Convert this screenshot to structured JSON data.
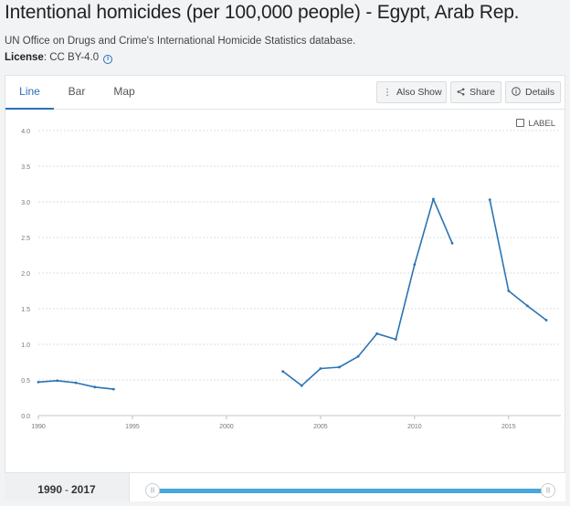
{
  "header": {
    "title": "Intentional homicides (per 100,000 people) - Egypt, Arab Rep.",
    "source": "UN Office on Drugs and Crime's International Homicide Statistics database.",
    "license_label": "License",
    "license_value": ": CC BY-4.0"
  },
  "tabs": [
    {
      "label": "Line",
      "active": true
    },
    {
      "label": "Bar",
      "active": false
    },
    {
      "label": "Map",
      "active": false
    }
  ],
  "actions": {
    "also_show": "Also Show",
    "share": "Share",
    "details": "Details"
  },
  "label_toggle": "LABEL",
  "range": {
    "start": "1990",
    "separator": "-",
    "end": "2017"
  },
  "colors": {
    "line": "#2a74b4",
    "accent": "#2a6ebb",
    "slider": "#4aa6dd"
  },
  "chart_data": {
    "type": "line",
    "title": "",
    "xlabel": "",
    "ylabel": "",
    "xlim": [
      1990,
      2017
    ],
    "ylim": [
      0,
      4
    ],
    "xticks": [
      1990,
      1995,
      2000,
      2005,
      2010,
      2015
    ],
    "yticks": [
      "0.0",
      "0.5",
      "1.0",
      "1.5",
      "2.0",
      "2.5",
      "3.0",
      "3.5",
      "4.0"
    ],
    "grid": "horizontal-dashed",
    "series": [
      {
        "points": [
          [
            1990,
            0.47
          ],
          [
            1991,
            0.49
          ],
          [
            1992,
            0.46
          ],
          [
            1993,
            0.4
          ],
          [
            1994,
            0.37
          ],
          [
            1995,
            null
          ],
          [
            1996,
            null
          ],
          [
            1997,
            null
          ],
          [
            1998,
            null
          ],
          [
            1999,
            null
          ],
          [
            2000,
            null
          ],
          [
            2001,
            null
          ],
          [
            2002,
            null
          ],
          [
            2003,
            0.62
          ],
          [
            2004,
            0.42
          ],
          [
            2005,
            0.66
          ],
          [
            2006,
            0.68
          ],
          [
            2007,
            0.83
          ],
          [
            2008,
            1.15
          ],
          [
            2009,
            1.07
          ],
          [
            2010,
            2.12
          ],
          [
            2011,
            3.04
          ],
          [
            2012,
            2.42
          ],
          [
            2013,
            null
          ],
          [
            2014,
            3.03
          ],
          [
            2015,
            1.75
          ],
          [
            2016,
            1.54
          ],
          [
            2017,
            1.34
          ]
        ]
      }
    ]
  }
}
